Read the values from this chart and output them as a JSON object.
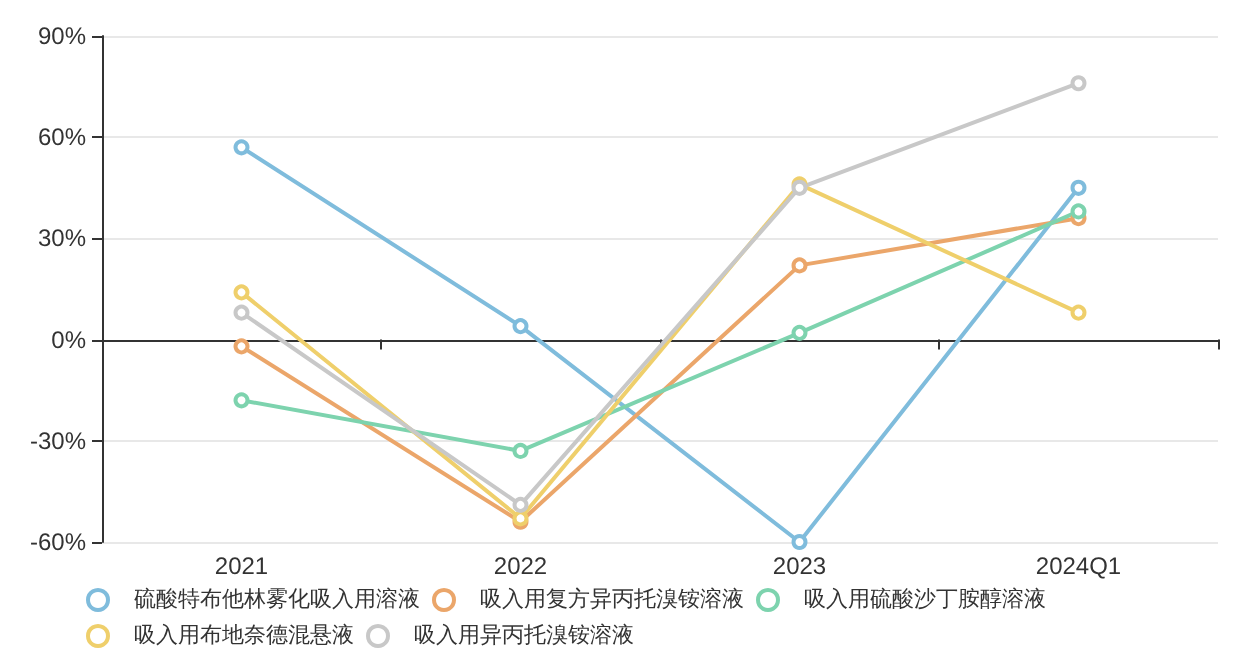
{
  "chart_data": {
    "type": "line",
    "categories": [
      "2021",
      "2022",
      "2023",
      "2024Q1"
    ],
    "series": [
      {
        "name": "硫酸特布他林雾化吸入用溶液",
        "color": "#7fbcdc",
        "values": [
          57,
          4,
          -60,
          45
        ]
      },
      {
        "name": "吸入用复方异丙托溴铵溶液",
        "color": "#eba66a",
        "values": [
          -2,
          -54,
          22,
          36
        ]
      },
      {
        "name": "吸入用硫酸沙丁胺醇溶液",
        "color": "#7dd3ae",
        "values": [
          -18,
          -33,
          2,
          38
        ]
      },
      {
        "name": "吸入用布地奈德混悬液",
        "color": "#efcf6b",
        "values": [
          14,
          -53,
          46,
          8
        ]
      },
      {
        "name": "吸入用异丙托溴铵溶液",
        "color": "#c8c8c8",
        "values": [
          8,
          -49,
          45,
          76
        ]
      }
    ],
    "ylim": [
      -60,
      90
    ],
    "yticks": [
      {
        "value": -60,
        "label": "-60%"
      },
      {
        "value": -30,
        "label": "-30%"
      },
      {
        "value": 0,
        "label": "0%"
      },
      {
        "value": 30,
        "label": "30%"
      },
      {
        "value": 60,
        "label": "60%"
      },
      {
        "value": 90,
        "label": "90%"
      }
    ],
    "grid": "y",
    "legend": "bottom",
    "marker": "circle",
    "line_style": "solid"
  }
}
